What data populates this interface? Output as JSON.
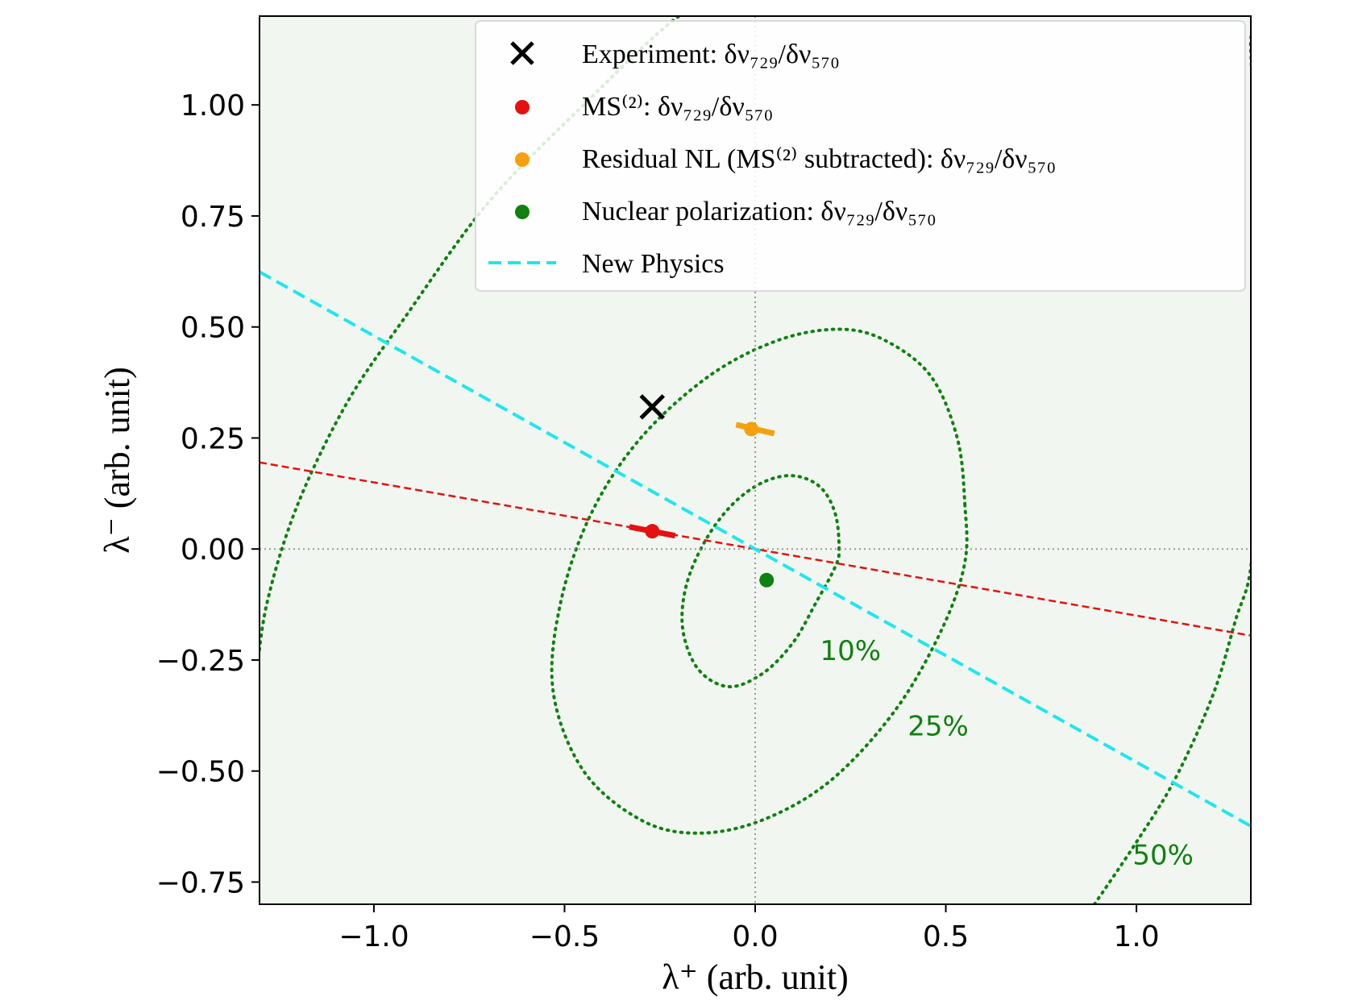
{
  "chart_data": {
    "type": "scatter",
    "title": "",
    "xlabel": "λ⁺ (arb. unit)",
    "ylabel": "λ⁻ (arb. unit)",
    "xlim": [
      -1.3,
      1.3
    ],
    "ylim": [
      -0.8,
      1.2
    ],
    "xticks": [
      -1.0,
      -0.5,
      0.0,
      0.5,
      1.0
    ],
    "xtick_labels": [
      "−1.0",
      "−0.5",
      "0.0",
      "0.5",
      "1.0"
    ],
    "yticks": [
      -0.75,
      -0.5,
      -0.25,
      0.0,
      0.25,
      0.5,
      0.75,
      1.0
    ],
    "ytick_labels": [
      "−0.75",
      "−0.50",
      "−0.25",
      "0.00",
      "0.25",
      "0.50",
      "0.75",
      "1.00"
    ],
    "grid": false,
    "legend_position": "top-right",
    "colors": {
      "background": "#f1f7f0",
      "experiment": "#000000",
      "ms2": "#e61010",
      "residual": "#f5a00f",
      "nuclear": "#108010",
      "new_physics": "#1ee6f0",
      "contour": "#108010",
      "zero_lines": "#999999"
    },
    "legend": [
      {
        "key": "experiment",
        "marker": "x",
        "label": "Experiment: δν₇₂₉/δν₅₇₀"
      },
      {
        "key": "ms2",
        "marker": "dot",
        "label": "MS⁽²⁾: δν₇₂₉/δν₅₇₀"
      },
      {
        "key": "residual",
        "marker": "dot",
        "label": "Residual NL (MS⁽²⁾ subtracted): δν₇₂₉/δν₅₇₀"
      },
      {
        "key": "nuclear",
        "marker": "dot",
        "label": "Nuclear polarization: δν₇₂₉/δν₅₇₀"
      },
      {
        "key": "new_physics",
        "marker": "dashed-line",
        "label": "New Physics"
      }
    ],
    "points": [
      {
        "key": "experiment",
        "marker": "x",
        "x": -0.27,
        "y": 0.32
      },
      {
        "key": "ms2",
        "marker": "dot",
        "x": -0.27,
        "y": 0.04,
        "segment": [
          [
            -0.33,
            0.05
          ],
          [
            -0.21,
            0.03
          ]
        ]
      },
      {
        "key": "residual",
        "marker": "dot",
        "x": -0.01,
        "y": 0.27,
        "segment": [
          [
            -0.05,
            0.28
          ],
          [
            0.05,
            0.26
          ]
        ]
      },
      {
        "key": "nuclear",
        "marker": "dot",
        "x": 0.03,
        "y": -0.07
      }
    ],
    "lines": [
      {
        "key": "ms2",
        "style": "dashed",
        "slope": -0.15,
        "intercept": 0.0
      },
      {
        "key": "new_physics",
        "style": "dashed",
        "slope": -0.48,
        "intercept": 0.0
      }
    ],
    "contours": [
      {
        "label": "10%",
        "label_at": [
          0.25,
          -0.25
        ],
        "points": [
          [
            0.22,
            0.0
          ],
          [
            0.21,
            0.08
          ],
          [
            0.17,
            0.14
          ],
          [
            0.1,
            0.165
          ],
          [
            0.02,
            0.15
          ],
          [
            -0.06,
            0.1
          ],
          [
            -0.13,
            0.02
          ],
          [
            -0.18,
            -0.08
          ],
          [
            -0.19,
            -0.18
          ],
          [
            -0.15,
            -0.27
          ],
          [
            -0.07,
            -0.31
          ],
          [
            0.02,
            -0.28
          ],
          [
            0.1,
            -0.21
          ],
          [
            0.16,
            -0.12
          ],
          [
            0.21,
            -0.04
          ]
        ]
      },
      {
        "label": "25%",
        "label_at": [
          0.48,
          -0.42
        ],
        "points": [
          [
            0.55,
            0.1
          ],
          [
            0.53,
            0.25
          ],
          [
            0.46,
            0.39
          ],
          [
            0.34,
            0.47
          ],
          [
            0.22,
            0.495
          ],
          [
            0.06,
            0.47
          ],
          [
            -0.12,
            0.39
          ],
          [
            -0.3,
            0.25
          ],
          [
            -0.43,
            0.08
          ],
          [
            -0.51,
            -0.12
          ],
          [
            -0.53,
            -0.32
          ],
          [
            -0.45,
            -0.5
          ],
          [
            -0.3,
            -0.61
          ],
          [
            -0.15,
            -0.64
          ],
          [
            0.02,
            -0.61
          ],
          [
            0.2,
            -0.52
          ],
          [
            0.37,
            -0.36
          ],
          [
            0.49,
            -0.18
          ],
          [
            0.55,
            -0.03
          ]
        ]
      },
      {
        "label": "50%",
        "label_at": [
          1.07,
          -0.71
        ],
        "points": [
          [
            0.89,
            -0.8
          ],
          [
            1.0,
            -0.66
          ],
          [
            1.1,
            -0.52
          ],
          [
            1.2,
            -0.33
          ],
          [
            1.26,
            -0.16
          ],
          [
            1.3,
            -0.04
          ],
          [
            1.31,
            0.2
          ],
          [
            1.3,
            1.12
          ],
          [
            1.25,
            1.25
          ],
          [
            -0.05,
            1.25
          ],
          [
            -0.2,
            1.2
          ],
          [
            -0.45,
            1.0
          ],
          [
            -0.7,
            0.78
          ],
          [
            -0.92,
            0.52
          ],
          [
            -1.07,
            0.33
          ],
          [
            -1.2,
            0.1
          ],
          [
            -1.28,
            -0.12
          ],
          [
            -1.31,
            -0.3
          ]
        ]
      }
    ]
  }
}
